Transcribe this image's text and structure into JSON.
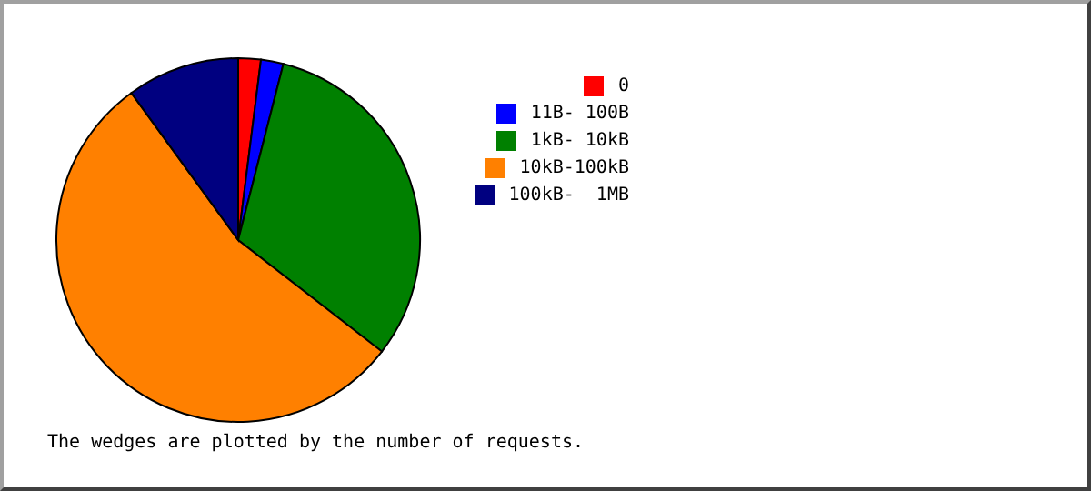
{
  "chart_data": {
    "type": "pie",
    "categories": [
      "0",
      "11B- 100B",
      "1kB- 10kB",
      "10kB-100kB",
      "100kB-  1MB"
    ],
    "values": [
      2,
      2,
      31.5,
      54.5,
      10
    ],
    "colors": [
      "#ff0000",
      "#0000ff",
      "#008000",
      "#ff8000",
      "#000080"
    ],
    "legend": "right",
    "annotations": [
      "The wedges are plotted by the number of requests."
    ]
  }
}
